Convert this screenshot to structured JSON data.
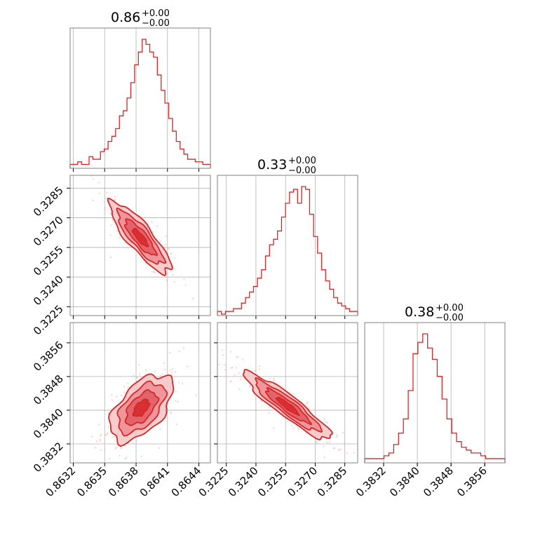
{
  "colors": {
    "series": "#d62728",
    "fill_light": "#f6c4c6",
    "fill_mid": "#ec8c92",
    "fill_dark": "#e05a62",
    "grid": "#b0b0b0",
    "frame": "#808080"
  },
  "chart_data": {
    "type": "corner",
    "grid": true,
    "parameters": [
      {
        "title_value": "0.86",
        "title_plus": "+0.00",
        "title_minus": "−0.00",
        "range": [
          0.86317,
          0.86451
        ],
        "ticks": [
          0.8632,
          0.8635,
          0.8638,
          0.8641,
          0.8644
        ],
        "tick_labels": [
          "0.8632",
          "0.8635",
          "0.8638",
          "0.8641",
          "0.8644"
        ],
        "hist_counts": [
          1,
          1,
          2,
          1,
          1,
          4,
          3,
          3,
          6,
          7,
          10,
          12,
          15,
          20,
          22,
          27,
          33,
          40,
          45,
          50,
          48,
          45,
          43,
          36,
          30,
          25,
          19,
          14,
          10,
          7,
          5,
          3,
          3,
          2,
          2,
          1,
          1
        ]
      },
      {
        "title_value": "0.33",
        "title_plus": "+0.00",
        "title_minus": "−0.00",
        "range": [
          0.32205,
          0.32915
        ],
        "ticks": [
          0.3225,
          0.324,
          0.3255,
          0.327,
          0.3285
        ],
        "tick_labels": [
          "0.3225",
          "0.3240",
          "0.3255",
          "0.3270",
          "0.3285"
        ],
        "hist_counts": [
          1,
          0,
          1,
          1,
          2,
          2,
          4,
          6,
          8,
          10,
          13,
          16,
          21,
          25,
          27,
          30,
          35,
          40,
          44,
          45,
          40,
          46,
          45,
          36,
          28,
          22,
          16,
          12,
          9,
          6,
          4,
          3,
          2,
          1,
          1
        ]
      },
      {
        "title_value": "0.38",
        "title_plus": "+0.00",
        "title_minus": "−0.00",
        "range": [
          0.38275,
          0.38608
        ],
        "ticks": [
          0.3832,
          0.384,
          0.3848,
          0.3856
        ],
        "tick_labels": [
          "0.3832",
          "0.3840",
          "0.3848",
          "0.3856"
        ],
        "hist_counts": [
          1,
          1,
          1,
          1,
          2,
          3,
          6,
          10,
          15,
          25,
          38,
          42,
          45,
          40,
          36,
          30,
          22,
          15,
          10,
          7,
          5,
          4,
          3,
          3,
          2,
          1,
          1,
          1,
          1
        ]
      }
    ],
    "pairs": [
      {
        "x_param": 0,
        "y_param": 1,
        "center": [
          0.86384,
          0.326
        ],
        "sd": [
          0.000145,
          0.0009
        ],
        "rho": -0.85
      },
      {
        "x_param": 0,
        "y_param": 2,
        "center": [
          0.86385,
          0.38405
        ],
        "sd": [
          0.00015,
          0.0004
        ],
        "rho": 0.55
      },
      {
        "x_param": 1,
        "y_param": 2,
        "center": [
          0.3256,
          0.3841
        ],
        "sd": [
          0.0011,
          0.0004
        ],
        "rho": -0.92
      }
    ],
    "contour_levels": [
      0.5,
      1.0,
      1.5,
      2.0
    ]
  }
}
